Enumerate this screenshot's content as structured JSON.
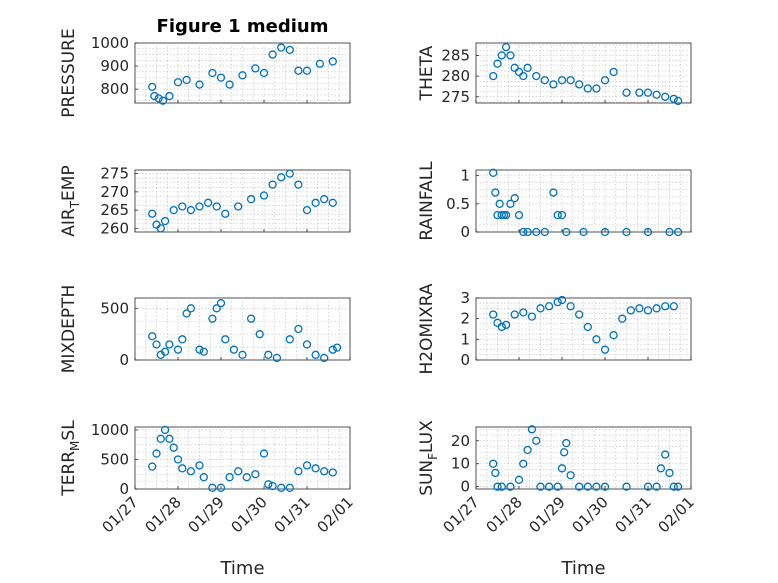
{
  "chart_data": [
    {
      "type": "scatter",
      "title": "Figure 1 medium",
      "ylabel": "PRESSURE",
      "sub": "",
      "ylim": [
        740,
        1000
      ],
      "yticks": [
        800,
        900,
        1000
      ],
      "xlim": [
        0,
        5
      ],
      "xticks": [
        0,
        1,
        2,
        3,
        4,
        5
      ],
      "xticklabels": [
        "01/27",
        "01/28",
        "01/29",
        "01/30",
        "01/31",
        "02/01"
      ],
      "xlabel": "",
      "series": [
        {
          "x": [
            0.4,
            0.45,
            0.55,
            0.65,
            0.8,
            1,
            1.2,
            1.5,
            1.8,
            2,
            2.2,
            2.5,
            2.8,
            3,
            3.2,
            3.4,
            3.6,
            3.8,
            4,
            4.3,
            4.6
          ],
          "y": [
            810,
            770,
            760,
            750,
            770,
            830,
            840,
            820,
            870,
            850,
            820,
            860,
            890,
            870,
            950,
            980,
            970,
            880,
            880,
            910,
            920
          ]
        }
      ]
    },
    {
      "type": "scatter",
      "title": "",
      "ylabel": "THETA",
      "sub": "",
      "ylim": [
        273.5,
        288
      ],
      "yticks": [
        275,
        280,
        285
      ],
      "xlim": [
        0,
        5
      ],
      "xticks": [
        0,
        1,
        2,
        3,
        4,
        5
      ],
      "xticklabels": [
        "01/27",
        "01/28",
        "01/29",
        "01/30",
        "01/31",
        "02/01"
      ],
      "xlabel": "",
      "series": [
        {
          "x": [
            0.4,
            0.5,
            0.6,
            0.7,
            0.8,
            0.9,
            1,
            1.1,
            1.2,
            1.4,
            1.6,
            1.8,
            2,
            2.2,
            2.4,
            2.6,
            2.8,
            3,
            3.2,
            3.5,
            3.8,
            4,
            4.2,
            4.4,
            4.6,
            4.7
          ],
          "y": [
            280,
            283,
            285,
            287,
            285,
            282,
            281,
            280,
            282,
            280,
            279,
            278,
            279,
            279,
            278,
            277,
            277,
            279,
            281,
            276,
            276,
            276,
            275.5,
            275,
            274.5,
            274
          ]
        }
      ]
    },
    {
      "type": "scatter",
      "title": "",
      "ylabel": "AIR",
      "sub": "T",
      "ylabel2": "EMP",
      "ylim": [
        259,
        276
      ],
      "yticks": [
        260,
        265,
        270,
        275
      ],
      "xlim": [
        0,
        5
      ],
      "xticks": [
        0,
        1,
        2,
        3,
        4,
        5
      ],
      "xticklabels": [
        "01/27",
        "01/28",
        "01/29",
        "01/30",
        "01/31",
        "02/01"
      ],
      "xlabel": "",
      "series": [
        {
          "x": [
            0.4,
            0.5,
            0.6,
            0.7,
            0.9,
            1.1,
            1.3,
            1.5,
            1.7,
            1.9,
            2.1,
            2.4,
            2.7,
            3,
            3.2,
            3.4,
            3.6,
            3.8,
            4,
            4.2,
            4.4,
            4.6
          ],
          "y": [
            264,
            261,
            260,
            262,
            265,
            266,
            265,
            266,
            267,
            266,
            264,
            266,
            268,
            269,
            272,
            274,
            275,
            272,
            265,
            267,
            268,
            267
          ]
        }
      ]
    },
    {
      "type": "scatter",
      "title": "",
      "ylabel": "RAINFALL",
      "sub": "",
      "ylim": [
        0,
        1.1
      ],
      "yticks": [
        0,
        0.5,
        1
      ],
      "xlim": [
        0,
        5
      ],
      "xticks": [
        0,
        1,
        2,
        3,
        4,
        5
      ],
      "xticklabels": [
        "01/27",
        "01/28",
        "01/29",
        "01/30",
        "01/31",
        "02/01"
      ],
      "xlabel": "",
      "series": [
        {
          "x": [
            0.4,
            0.45,
            0.5,
            0.55,
            0.6,
            0.65,
            0.7,
            0.8,
            0.9,
            1,
            1.1,
            1.2,
            1.4,
            1.6,
            1.8,
            1.9,
            2,
            2.1,
            2.5,
            3,
            3.5,
            4,
            4.5,
            4.7
          ],
          "y": [
            1.05,
            0.7,
            0.3,
            0.5,
            0.3,
            0.3,
            0.3,
            0.5,
            0.6,
            0.3,
            0,
            0,
            0,
            0,
            0.7,
            0.3,
            0.3,
            0,
            0,
            0,
            0,
            0,
            0,
            0
          ]
        }
      ]
    },
    {
      "type": "scatter",
      "title": "",
      "ylabel": "MIXDEPTH",
      "sub": "",
      "ylim": [
        0,
        600
      ],
      "yticks": [
        0,
        500
      ],
      "xlim": [
        0,
        5
      ],
      "xticks": [
        0,
        1,
        2,
        3,
        4,
        5
      ],
      "xticklabels": [
        "01/27",
        "01/28",
        "01/29",
        "01/30",
        "01/31",
        "02/01"
      ],
      "xlabel": "",
      "series": [
        {
          "x": [
            0.4,
            0.5,
            0.6,
            0.7,
            0.8,
            1,
            1.1,
            1.2,
            1.3,
            1.5,
            1.6,
            1.8,
            1.9,
            2,
            2.1,
            2.3,
            2.5,
            2.7,
            2.9,
            3.1,
            3.3,
            3.6,
            3.8,
            4,
            4.2,
            4.4,
            4.6,
            4.7
          ],
          "y": [
            230,
            150,
            50,
            80,
            150,
            100,
            200,
            450,
            500,
            100,
            80,
            400,
            500,
            550,
            200,
            100,
            50,
            400,
            250,
            50,
            20,
            200,
            300,
            150,
            50,
            20,
            100,
            120
          ]
        }
      ]
    },
    {
      "type": "scatter",
      "title": "",
      "ylabel": "H2OMIXRA",
      "sub": "",
      "ylim": [
        0,
        3
      ],
      "yticks": [
        0,
        1,
        2,
        3
      ],
      "xlim": [
        0,
        5
      ],
      "xticks": [
        0,
        1,
        2,
        3,
        4,
        5
      ],
      "xticklabels": [
        "01/27",
        "01/28",
        "01/29",
        "01/30",
        "01/31",
        "02/01"
      ],
      "xlabel": "",
      "series": [
        {
          "x": [
            0.4,
            0.5,
            0.6,
            0.7,
            0.9,
            1.1,
            1.3,
            1.5,
            1.7,
            1.9,
            2,
            2.2,
            2.4,
            2.6,
            2.8,
            3,
            3.2,
            3.4,
            3.6,
            3.8,
            4,
            4.2,
            4.4,
            4.6
          ],
          "y": [
            2.2,
            1.8,
            1.6,
            1.7,
            2.2,
            2.3,
            2.1,
            2.5,
            2.6,
            2.8,
            2.9,
            2.6,
            2.2,
            1.6,
            1,
            0.5,
            1.2,
            2,
            2.4,
            2.5,
            2.4,
            2.5,
            2.6,
            2.6
          ]
        }
      ]
    },
    {
      "type": "scatter",
      "title": "",
      "ylabel": "TERR",
      "sub": "M",
      "ylabel2": "SL",
      "ylim": [
        0,
        1050
      ],
      "yticks": [
        0,
        500,
        1000
      ],
      "xlim": [
        0,
        5
      ],
      "xticks": [
        0,
        1,
        2,
        3,
        4,
        5
      ],
      "xticklabels": [
        "01/27",
        "01/28",
        "01/29",
        "01/30",
        "01/31",
        "02/01"
      ],
      "xlabel": "Time",
      "series": [
        {
          "x": [
            0.4,
            0.5,
            0.6,
            0.7,
            0.8,
            0.9,
            1,
            1.1,
            1.3,
            1.5,
            1.6,
            1.8,
            2,
            2.2,
            2.4,
            2.6,
            2.8,
            3,
            3.1,
            3.2,
            3.4,
            3.6,
            3.8,
            4,
            4.2,
            4.4,
            4.6
          ],
          "y": [
            380,
            600,
            850,
            1000,
            850,
            700,
            500,
            350,
            300,
            400,
            200,
            20,
            20,
            200,
            300,
            200,
            250,
            600,
            80,
            50,
            20,
            20,
            300,
            400,
            350,
            300,
            280
          ]
        }
      ]
    },
    {
      "type": "scatter",
      "title": "",
      "ylabel": "SUN",
      "sub": "F",
      "ylabel2": "LUX",
      "ylim": [
        -1,
        26
      ],
      "yticks": [
        0,
        10,
        20
      ],
      "xlim": [
        0,
        5
      ],
      "xticks": [
        0,
        1,
        2,
        3,
        4,
        5
      ],
      "xticklabels": [
        "01/27",
        "01/28",
        "01/29",
        "01/30",
        "01/31",
        "02/01"
      ],
      "xlabel": "Time",
      "series": [
        {
          "x": [
            0.4,
            0.45,
            0.5,
            0.6,
            0.8,
            1,
            1.1,
            1.2,
            1.3,
            1.4,
            1.5,
            1.7,
            1.9,
            2,
            2.05,
            2.1,
            2.2,
            2.4,
            2.6,
            2.8,
            3,
            3.5,
            4,
            4.2,
            4.3,
            4.4,
            4.5,
            4.6,
            4.7
          ],
          "y": [
            10,
            6,
            0,
            0,
            0,
            3,
            10,
            16,
            25,
            20,
            0,
            0,
            0,
            8,
            15,
            19,
            5,
            0,
            0,
            0,
            0,
            0,
            0,
            0,
            8,
            14,
            6,
            0,
            0
          ]
        }
      ]
    }
  ]
}
